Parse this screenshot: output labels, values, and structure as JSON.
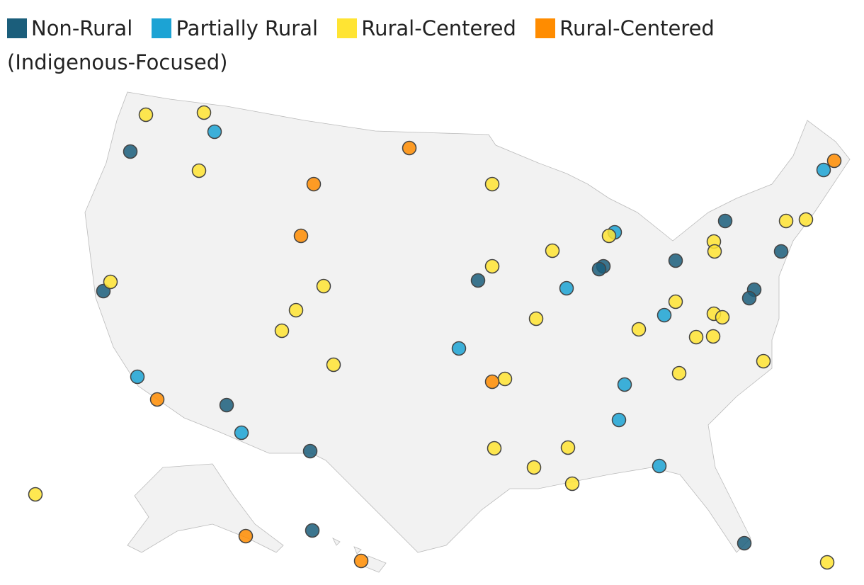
{
  "chart_data": {
    "type": "point-map",
    "series": [
      {
        "name": "Non-Rural",
        "color": "#1b5e7b",
        "lon": [
          -119.3,
          -77.3,
          -73.35,
          -85.9,
          -86.2,
          -80.8,
          -121.2,
          -94.75,
          -75.25,
          -75.6,
          -112.5,
          -106.6,
          -106.45,
          -75.95
        ],
        "lat": [
          48.04,
          44.12,
          42.4,
          41.56,
          41.4,
          41.88,
          40.16,
          40.76,
          40.24,
          39.76,
          33.72,
          31.12,
          26.64,
          25.92
        ]
      },
      {
        "name": "Partially Rural",
        "color": "#1ca3d4",
        "lon": [
          -113.35,
          -85.1,
          -70.35,
          -88.5,
          -81.6,
          -96.1,
          -118.8,
          -84.4,
          -84.8,
          -111.45,
          -81.95
        ],
        "lat": [
          49.16,
          43.48,
          47,
          40.32,
          38.8,
          36.92,
          35.32,
          34.88,
          32.88,
          32.16,
          30.28
        ]
      },
      {
        "name": "Rural-Centered",
        "color": "#ffe433",
        "lon": [
          -118.2,
          -114.1,
          -114.45,
          -93.75,
          -85.5,
          -73,
          -71.6,
          -78.1,
          -78.05,
          -89.5,
          -93.75,
          -120.7,
          -105.65,
          -107.6,
          -108.6,
          -80.8,
          -78.1,
          -77.5,
          -90.65,
          -83.4,
          -79.35,
          -78.15,
          -104.95,
          -74.6,
          -80.55,
          -92.85,
          -93.6,
          -88.4,
          -90.8,
          -88.1,
          -126,
          -70.1
        ],
        "lat": [
          50.12,
          50.24,
          46.96,
          46.2,
          43.28,
          44.12,
          44.2,
          42.96,
          42.4,
          42.44,
          41.56,
          40.68,
          40.44,
          39.08,
          37.92,
          39.56,
          38.88,
          38.68,
          38.6,
          38,
          37.56,
          37.6,
          36,
          36.2,
          35.52,
          35.2,
          31.28,
          31.32,
          30.2,
          29.28,
          28.68,
          24.84
        ]
      },
      {
        "name": "Rural-Centered (Indigenous-Focused)",
        "color": "#ff8c00",
        "lon": [
          -99.6,
          -106.35,
          -107.25,
          -69.6,
          -93.75,
          -117.4,
          -111.15,
          -103
        ],
        "lat": [
          48.24,
          46.2,
          43.28,
          47.52,
          35.04,
          34.04,
          26.32,
          24.92
        ]
      }
    ]
  }
}
